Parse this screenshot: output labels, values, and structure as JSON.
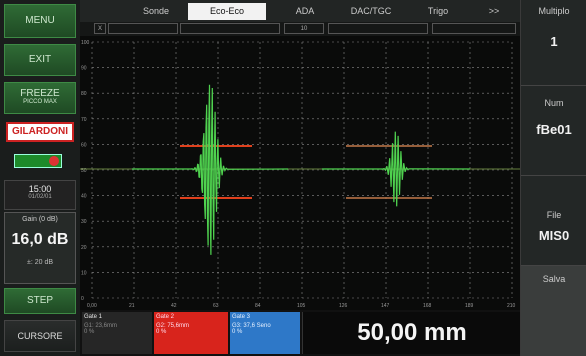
{
  "left": {
    "menu": "MENU",
    "exit": "EXIT",
    "freeze": "FREEZE",
    "freeze_sub": "PICCO MAX",
    "logo": "GILARDONI",
    "time": "15:00",
    "date": "01/02/01",
    "gain_title": "Gain (0 dB)",
    "gain_value": "16,0 dB",
    "gain_step": "±: 20 dB",
    "step": "STEP",
    "cursor": "CURSORE"
  },
  "tabs": [
    {
      "label": "Sonde"
    },
    {
      "label": "Eco-Eco"
    },
    {
      "label": "ADA"
    },
    {
      "label": "DAC/TGC"
    },
    {
      "label": "Trigo"
    },
    {
      "label": ">>"
    }
  ],
  "subbar": {
    "cell1": "X",
    "cell2": "10"
  },
  "plot": {
    "y_ticks": [
      "100",
      "90",
      "80",
      "70",
      "60",
      "50",
      "40",
      "30",
      "20",
      "10",
      "0"
    ],
    "x_ticks": [
      "0,00",
      "21",
      "42",
      "63",
      "84",
      "105",
      "126",
      "147",
      "168",
      "189",
      "210"
    ]
  },
  "bottom": {
    "gate1_title": "Gate 1",
    "gate1_value": "G1: 23,6mm",
    "gate1_sub": "0 %",
    "gate2_title": "Gate 2",
    "gate2_value": "G2: 75,6mm",
    "gate2_sub": "0 %",
    "gate3_title": "Gate 3",
    "gate3_value": "G3: 37,6 Seno",
    "gate3_sub": "0 %",
    "reading": "50,00 mm"
  },
  "right": {
    "multiplo_label": "Multiplo",
    "multiplo_value": "1",
    "num_label": "Num",
    "num_value": "fBe01",
    "file_label": "File",
    "file_value": "MIS0",
    "salva": "Salva"
  },
  "colors": {
    "signal": "#4fd24f",
    "gate_red": "#e0401c",
    "gate_blue": "#2e78c8",
    "grid": "#8a8a8a"
  }
}
